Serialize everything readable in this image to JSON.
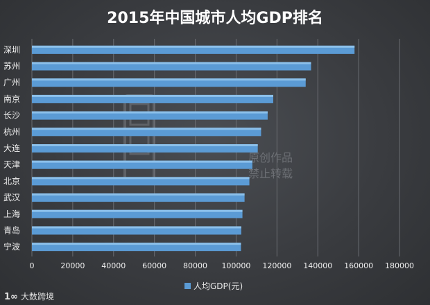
{
  "chart_data": {
    "type": "bar",
    "orientation": "horizontal",
    "title": "2015年中国城市人均GDP排名",
    "categories": [
      "深圳",
      "苏州",
      "广州",
      "南京",
      "长沙",
      "杭州",
      "大连",
      "天津",
      "北京",
      "武汉",
      "上海",
      "青岛",
      "宁波"
    ],
    "series": [
      {
        "name": "人均GDP(元)",
        "values": [
          157985,
          136702,
          134066,
          118171,
          115443,
          112230,
          110600,
          107960,
          106497,
          104132,
          103100,
          102519,
          102374
        ]
      }
    ],
    "xlim": [
      0,
      180000
    ],
    "xticks": [
      0,
      20000,
      40000,
      60000,
      80000,
      100000,
      120000,
      140000,
      160000,
      180000
    ],
    "grid": "vertical",
    "legend_position": "bottom",
    "colors": {
      "bar": "#5b9bd5",
      "background": "#3b3d41",
      "grid": "#6a6d72",
      "text": "#ffffff"
    }
  },
  "watermark": {
    "line1": "原创作品",
    "line2": "禁止转载"
  },
  "brand": {
    "text": "大数跨境",
    "logo": "100-logo-icon"
  }
}
